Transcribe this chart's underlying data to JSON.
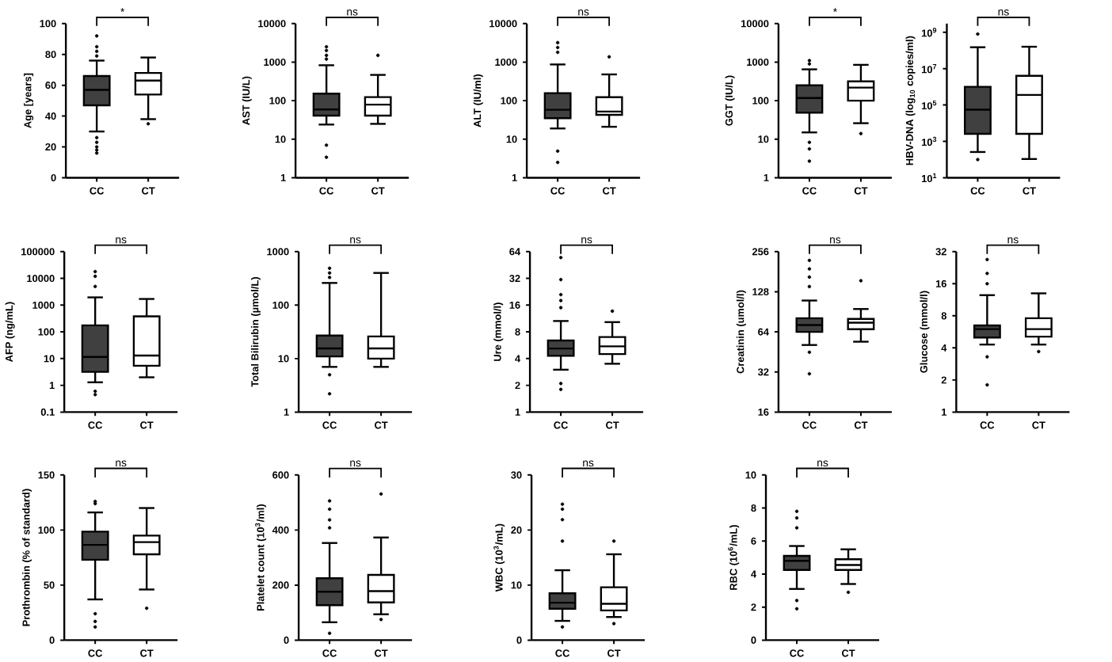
{
  "chart_data": [
    {
      "type": "box",
      "ylabel": "Age [years]",
      "categories": [
        "CC",
        "CT"
      ],
      "colors": [
        "#404040",
        "#ffffff"
      ],
      "ylim": [
        0,
        100
      ],
      "yticks": [
        0,
        20,
        40,
        60,
        80,
        100
      ],
      "annotations": [
        "*"
      ],
      "boxes": [
        {
          "low": 30,
          "q1": 47,
          "median": 57,
          "q3": 66,
          "high": 76,
          "outliers": [
            92,
            85,
            82,
            79,
            26,
            23,
            20,
            18,
            16
          ]
        },
        {
          "low": 38,
          "q1": 54,
          "median": 63,
          "q3": 68,
          "high": 78,
          "outliers": [
            35
          ]
        }
      ]
    },
    {
      "type": "box",
      "ylabel": "AST (IU/L)",
      "categories": [
        "CC",
        "CT"
      ],
      "colors": [
        "#404040",
        "#ffffff"
      ],
      "log": true,
      "ylim": [
        1,
        10000
      ],
      "yticks": [
        1,
        10,
        100,
        1000,
        10000
      ],
      "annotations": [
        "ns"
      ],
      "boxes": [
        {
          "low": 24,
          "q1": 41,
          "median": 59,
          "q3": 152,
          "high": 830,
          "outliers": [
            2500,
            2000,
            1500,
            1200,
            7,
            3.4
          ]
        },
        {
          "low": 25,
          "q1": 41,
          "median": 79,
          "q3": 124,
          "high": 466,
          "outliers": [
            1500
          ]
        }
      ]
    },
    {
      "type": "box",
      "ylabel": "ALT (IU/ml)",
      "categories": [
        "CC",
        "CT"
      ],
      "colors": [
        "#404040",
        "#ffffff"
      ],
      "log": true,
      "ylim": [
        1,
        10000
      ],
      "yticks": [
        1,
        10,
        100,
        1000,
        10000
      ],
      "annotations": [
        "ns"
      ],
      "boxes": [
        {
          "low": 19,
          "q1": 35,
          "median": 58,
          "q3": 157,
          "high": 870,
          "outliers": [
            3200,
            2400,
            1800,
            4.9,
            2.5
          ]
        },
        {
          "low": 21,
          "q1": 43,
          "median": 52,
          "q3": 123,
          "high": 480,
          "outliers": [
            1370
          ]
        }
      ]
    },
    {
      "type": "box",
      "ylabel": "GGT (IU/L)",
      "categories": [
        "CC",
        "CT"
      ],
      "colors": [
        "#404040",
        "#ffffff"
      ],
      "log": true,
      "ylim": [
        1,
        10000
      ],
      "yticks": [
        1,
        10,
        100,
        1000,
        10000
      ],
      "annotations": [
        "*"
      ],
      "boxes": [
        {
          "low": 15,
          "q1": 49,
          "median": 117,
          "q3": 250,
          "high": 650,
          "outliers": [
            1100,
            900,
            8.3,
            5.6,
            2.7
          ]
        },
        {
          "low": 26,
          "q1": 100,
          "median": 218,
          "q3": 317,
          "high": 850,
          "outliers": [
            14
          ]
        }
      ]
    },
    {
      "type": "box",
      "ylabel": "HBV-DNA (log$_{10}$ copies/ml)",
      "categories": [
        "CC",
        "CT"
      ],
      "colors": [
        "#404040",
        "#ffffff"
      ],
      "log": true,
      "ylim": [
        10,
        3000000000
      ],
      "yticks": [
        {
          "value": 10,
          "label": "10$^{1}$"
        },
        {
          "value": 1000,
          "label": "10$^{3}$"
        },
        {
          "value": 100000,
          "label": "10$^{5}$"
        },
        {
          "value": 10000000,
          "label": "10$^{7}$"
        },
        {
          "value": 1000000000,
          "label": "10$^{9}$"
        }
      ],
      "annotations": [
        "ns"
      ],
      "boxes": [
        {
          "low": 260,
          "q1": 2600,
          "median": 55000,
          "q3": 1000000,
          "high": 150000000,
          "outliers": [
            800000000,
            100
          ]
        },
        {
          "low": 107,
          "q1": 2600,
          "median": 360000,
          "q3": 4000000,
          "high": 160000000
        }
      ]
    },
    {
      "type": "box",
      "ylabel": "AFP (ng/mL)",
      "categories": [
        "CC",
        "CT"
      ],
      "colors": [
        "#404040",
        "#ffffff"
      ],
      "log": true,
      "ylim": [
        0.1,
        100000
      ],
      "yticks": [
        0.1,
        1,
        10,
        100,
        1000,
        10000,
        100000
      ],
      "annotations": [
        "ns"
      ],
      "boxes": [
        {
          "low": 1.3,
          "q1": 3.2,
          "median": 11.5,
          "q3": 175,
          "high": 1950,
          "outliers": [
            18000,
            12000,
            5000,
            0.6,
            0.45
          ]
        },
        {
          "low": 2,
          "q1": 5.4,
          "median": 13,
          "q3": 380,
          "high": 1700
        }
      ]
    },
    {
      "type": "box",
      "ylabel": "Total Bilirubin (µmol/L)",
      "categories": [
        "CC",
        "CT"
      ],
      "colors": [
        "#404040",
        "#ffffff"
      ],
      "log": true,
      "ylim": [
        1,
        1000
      ],
      "yticks": [
        1,
        10,
        100,
        1000
      ],
      "annotations": [
        "ns"
      ],
      "boxes": [
        {
          "low": 7,
          "q1": 11,
          "median": 15.5,
          "q3": 27,
          "high": 260,
          "outliers": [
            490,
            400,
            330,
            5,
            2.2
          ]
        },
        {
          "low": 7,
          "q1": 10,
          "median": 15.5,
          "q3": 26,
          "high": 400
        }
      ]
    },
    {
      "type": "box",
      "ylabel": "Ure (mmol/l)",
      "categories": [
        "CC",
        "CT"
      ],
      "colors": [
        "#404040",
        "#ffffff"
      ],
      "log": true,
      "ylim": [
        1,
        64
      ],
      "yticks": [
        1,
        2,
        4,
        8,
        16,
        32,
        64
      ],
      "annotations": [
        "ns"
      ],
      "boxes": [
        {
          "low": 3,
          "q1": 4.3,
          "median": 5.2,
          "q3": 6.4,
          "high": 10.6,
          "outliers": [
            55,
            31,
            21,
            18,
            15,
            2.1,
            1.8
          ]
        },
        {
          "low": 3.5,
          "q1": 4.5,
          "median": 5.5,
          "q3": 7,
          "high": 10.3,
          "outliers": [
            13.7
          ]
        }
      ]
    },
    {
      "type": "box",
      "ylabel": "Creatinin (umol/l)",
      "categories": [
        "CC",
        "CT"
      ],
      "colors": [
        "#404040",
        "#ffffff"
      ],
      "log": true,
      "ylim": [
        16,
        256
      ],
      "yticks": [
        16,
        32,
        64,
        128,
        256
      ],
      "annotations": [
        "ns"
      ],
      "boxes": [
        {
          "low": 51,
          "q1": 64,
          "median": 72,
          "q3": 81,
          "high": 110,
          "outliers": [
            220,
            190,
            165,
            140,
            45,
            31
          ]
        },
        {
          "low": 54,
          "q1": 67,
          "median": 75,
          "q3": 80,
          "high": 95,
          "outliers": [
            155
          ]
        }
      ]
    },
    {
      "type": "box",
      "ylabel": "Glucose (mmol/l)",
      "categories": [
        "CC",
        "CT"
      ],
      "colors": [
        "#404040",
        "#ffffff"
      ],
      "log": true,
      "ylim": [
        1,
        32
      ],
      "yticks": [
        1,
        2,
        4,
        8,
        16,
        32
      ],
      "annotations": [
        "ns"
      ],
      "boxes": [
        {
          "low": 4.3,
          "q1": 5,
          "median": 6,
          "q3": 6.5,
          "high": 12.5,
          "outliers": [
            27,
            20,
            16,
            3.3,
            1.8
          ]
        },
        {
          "low": 4.3,
          "q1": 5.1,
          "median": 6,
          "q3": 7.6,
          "high": 13,
          "outliers": [
            3.7
          ]
        }
      ]
    },
    {
      "type": "box",
      "ylabel": "Prothrombin (% of standard)",
      "categories": [
        "CC",
        "CT"
      ],
      "colors": [
        "#404040",
        "#ffffff"
      ],
      "ylim": [
        0,
        150
      ],
      "yticks": [
        0,
        50,
        100,
        150
      ],
      "annotations": [
        "ns"
      ],
      "boxes": [
        {
          "low": 37,
          "q1": 73,
          "median": 86.5,
          "q3": 98.6,
          "high": 116,
          "outliers": [
            126,
            124,
            24,
            17,
            12
          ]
        },
        {
          "low": 46,
          "q1": 78,
          "median": 89,
          "q3": 95,
          "high": 120,
          "outliers": [
            29
          ]
        }
      ]
    },
    {
      "type": "box",
      "ylabel": "Platelet count (10$^{3}$/ml)",
      "categories": [
        "CC",
        "CT"
      ],
      "colors": [
        "#404040",
        "#ffffff"
      ],
      "ylim": [
        0,
        600
      ],
      "yticks": [
        0,
        200,
        400,
        600
      ],
      "annotations": [
        "ns"
      ],
      "boxes": [
        {
          "low": 65,
          "q1": 127,
          "median": 176,
          "q3": 225,
          "high": 353,
          "outliers": [
            506,
            476,
            437,
            408,
            25
          ]
        },
        {
          "low": 94,
          "q1": 137,
          "median": 178,
          "q3": 237,
          "high": 373,
          "outliers": [
            531,
            75
          ]
        }
      ]
    },
    {
      "type": "box",
      "ylabel": "WBC (10$^{3}$/mL)",
      "categories": [
        "CC",
        "CT"
      ],
      "colors": [
        "#404040",
        "#ffffff"
      ],
      "ylim": [
        0,
        30
      ],
      "yticks": [
        0,
        10,
        20,
        30
      ],
      "annotations": [
        "ns"
      ],
      "boxes": [
        {
          "low": 3.5,
          "q1": 5.7,
          "median": 6.8,
          "q3": 8.5,
          "high": 12.7,
          "outliers": [
            24.7,
            23.8,
            21.9,
            18,
            2.4
          ]
        },
        {
          "low": 4.2,
          "q1": 5.4,
          "median": 6.6,
          "q3": 9.6,
          "high": 15.6,
          "outliers": [
            18,
            3
          ]
        }
      ]
    },
    {
      "type": "box",
      "ylabel": "RBC (10$^{6}$/mL)",
      "categories": [
        "CC",
        "CT"
      ],
      "colors": [
        "#404040",
        "#ffffff"
      ],
      "ylim": [
        0,
        10
      ],
      "yticks": [
        0,
        2,
        4,
        6,
        8,
        10
      ],
      "annotations": [
        "ns"
      ],
      "boxes": [
        {
          "low": 3.1,
          "q1": 4.25,
          "median": 4.8,
          "q3": 5.1,
          "high": 5.7,
          "outliers": [
            7.8,
            7.4,
            6.8,
            2.4,
            1.9
          ]
        },
        {
          "low": 3.4,
          "q1": 4.25,
          "median": 4.55,
          "q3": 4.9,
          "high": 5.5,
          "outliers": [
            2.9
          ]
        }
      ]
    }
  ]
}
